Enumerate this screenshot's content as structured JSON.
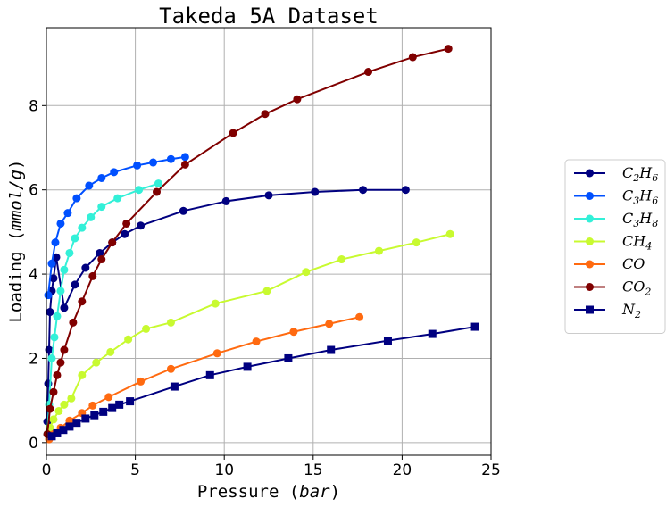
{
  "chart_data": {
    "type": "line",
    "title": "Takeda 5A Dataset",
    "xlabel": {
      "text": "Pressure (",
      "italic": "bar",
      "tail": ")"
    },
    "ylabel": {
      "text": "Loading (",
      "italic": "mmol/g",
      "tail": ")"
    },
    "xlim": [
      0,
      25
    ],
    "ylim": [
      -0.3,
      9.85
    ],
    "xticks": [
      0,
      5,
      10,
      15,
      20,
      25
    ],
    "yticks": [
      0,
      2,
      4,
      6,
      8
    ],
    "grid": true,
    "legend_position": "right",
    "series": [
      {
        "name": "C2H6",
        "label_parts": [
          [
            "C",
            "2"
          ],
          [
            "H",
            "6"
          ]
        ],
        "color": "#000080",
        "marker": "circle",
        "x": [
          0.05,
          0.1,
          0.15,
          0.2,
          0.3,
          0.4,
          0.55,
          1.0,
          1.6,
          2.2,
          3.0,
          3.7,
          4.4,
          5.3,
          7.7,
          10.1,
          12.5,
          15.1,
          17.8,
          20.2
        ],
        "y": [
          0.5,
          1.4,
          2.2,
          3.1,
          3.6,
          3.9,
          4.4,
          3.2,
          3.75,
          4.15,
          4.5,
          4.75,
          4.95,
          5.15,
          5.5,
          5.73,
          5.87,
          5.95,
          6.0,
          6.0
        ]
      },
      {
        "name": "C3H6",
        "label_parts": [
          [
            "C",
            "3"
          ],
          [
            "H",
            "6"
          ]
        ],
        "color": "#0050ff",
        "marker": "circle",
        "x": [
          0.1,
          0.3,
          0.5,
          0.8,
          1.2,
          1.7,
          2.4,
          3.1,
          3.8,
          5.1,
          6.0,
          7.0,
          7.8
        ],
        "y": [
          3.5,
          4.25,
          4.75,
          5.2,
          5.45,
          5.8,
          6.1,
          6.28,
          6.42,
          6.58,
          6.65,
          6.73,
          6.78
        ]
      },
      {
        "name": "C3H8",
        "label_parts": [
          [
            "C",
            "3"
          ],
          [
            "H",
            "8"
          ]
        ],
        "color": "#33f0d8",
        "marker": "circle",
        "x": [
          0.05,
          0.15,
          0.3,
          0.45,
          0.6,
          0.8,
          1.0,
          1.3,
          1.6,
          2.0,
          2.5,
          3.1,
          4.0,
          5.2,
          6.3
        ],
        "y": [
          0.2,
          0.9,
          2.0,
          2.5,
          3.0,
          3.6,
          4.1,
          4.5,
          4.85,
          5.1,
          5.35,
          5.6,
          5.8,
          6.0,
          6.15
        ]
      },
      {
        "name": "CH4",
        "label_parts": [
          [
            "C",
            ""
          ],
          [
            "H",
            "4"
          ]
        ],
        "color": "#c8fa30",
        "marker": "circle",
        "x": [
          0.1,
          0.2,
          0.4,
          0.7,
          1.0,
          1.4,
          2.0,
          2.8,
          3.6,
          4.6,
          5.6,
          7.0,
          9.5,
          12.4,
          14.6,
          16.6,
          18.7,
          20.8,
          22.7
        ],
        "y": [
          0.2,
          0.35,
          0.55,
          0.75,
          0.9,
          1.05,
          1.6,
          1.9,
          2.15,
          2.45,
          2.7,
          2.85,
          3.3,
          3.6,
          4.05,
          4.35,
          4.55,
          4.75,
          4.95
        ]
      },
      {
        "name": "CO",
        "label_parts": [
          [
            "C",
            ""
          ],
          [
            "O",
            ""
          ]
        ],
        "color": "#ff6a10",
        "marker": "circle",
        "x": [
          0.15,
          0.4,
          0.8,
          1.3,
          2.0,
          2.6,
          3.5,
          5.3,
          7.0,
          9.6,
          11.8,
          13.9,
          15.9,
          17.6
        ],
        "y": [
          0.08,
          0.2,
          0.35,
          0.52,
          0.7,
          0.88,
          1.08,
          1.45,
          1.75,
          2.12,
          2.4,
          2.63,
          2.82,
          2.98
        ]
      },
      {
        "name": "CO2",
        "label_parts": [
          [
            "C",
            ""
          ],
          [
            "O",
            "2"
          ]
        ],
        "color": "#800000",
        "marker": "circle",
        "x": [
          0.05,
          0.2,
          0.4,
          0.6,
          0.8,
          1.0,
          1.5,
          2.0,
          2.6,
          3.1,
          3.7,
          4.5,
          6.2,
          7.8,
          10.5,
          12.3,
          14.1,
          18.1,
          20.6,
          22.6
        ],
        "y": [
          0.2,
          0.8,
          1.2,
          1.6,
          1.9,
          2.2,
          2.85,
          3.35,
          3.95,
          4.35,
          4.75,
          5.2,
          5.95,
          6.6,
          7.35,
          7.8,
          8.15,
          8.8,
          9.15,
          9.35
        ]
      },
      {
        "name": "N2",
        "label_parts": [
          [
            "N",
            "2"
          ]
        ],
        "color": "#000080",
        "marker": "square",
        "x": [
          0.3,
          0.6,
          0.95,
          1.3,
          1.7,
          2.2,
          2.7,
          3.2,
          3.7,
          4.1,
          4.7,
          7.2,
          9.2,
          11.3,
          13.6,
          16.0,
          19.2,
          21.7,
          24.1
        ],
        "y": [
          0.15,
          0.22,
          0.3,
          0.38,
          0.47,
          0.57,
          0.65,
          0.73,
          0.82,
          0.9,
          0.98,
          1.33,
          1.6,
          1.8,
          2.0,
          2.2,
          2.42,
          2.58,
          2.75
        ]
      }
    ]
  }
}
